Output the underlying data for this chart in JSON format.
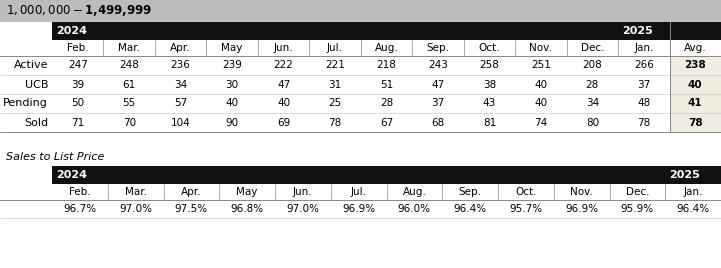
{
  "title": "$1,000,000 - $1,499,999",
  "title_bg": "#bcbcbc",
  "year_header_bg": "#111111",
  "avg_col_bg": "#f0ede0",
  "months_main": [
    "Feb.",
    "Mar.",
    "Apr.",
    "May",
    "Jun.",
    "Jul.",
    "Aug.",
    "Sep.",
    "Oct.",
    "Nov.",
    "Dec.",
    "Jan.",
    "Avg."
  ],
  "year_labels": [
    "2024",
    "2025"
  ],
  "rows": [
    {
      "label": "Active",
      "values": [
        247,
        248,
        236,
        239,
        222,
        221,
        218,
        243,
        258,
        251,
        208,
        266,
        238
      ]
    },
    {
      "label": "UCB",
      "values": [
        39,
        61,
        34,
        30,
        47,
        31,
        51,
        47,
        38,
        40,
        28,
        37,
        40
      ]
    },
    {
      "label": "Pending",
      "values": [
        50,
        55,
        57,
        40,
        40,
        25,
        28,
        37,
        43,
        40,
        34,
        48,
        41
      ]
    },
    {
      "label": "Sold",
      "values": [
        71,
        70,
        104,
        90,
        69,
        78,
        67,
        68,
        81,
        74,
        80,
        78,
        78
      ]
    }
  ],
  "sales_title": "Sales to List Price",
  "sales_months": [
    "Feb.",
    "Mar.",
    "Apr.",
    "May",
    "Jun.",
    "Jul.",
    "Aug.",
    "Sep.",
    "Oct.",
    "Nov.",
    "Dec.",
    "Jan."
  ],
  "sales_values": [
    "96.7%",
    "97.0%",
    "97.5%",
    "96.8%",
    "97.0%",
    "96.9%",
    "96.0%",
    "96.4%",
    "95.7%",
    "96.9%",
    "95.9%",
    "96.4%"
  ],
  "fig_w": 7.21,
  "fig_h": 2.68,
  "dpi": 100
}
